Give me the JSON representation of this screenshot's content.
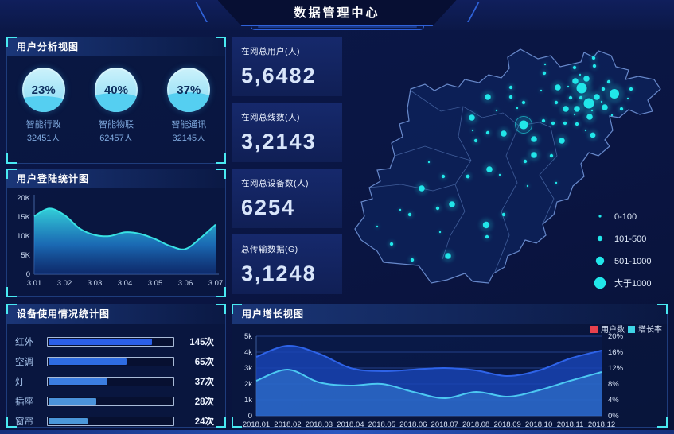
{
  "header": {
    "title": "数据管理中心"
  },
  "panels": {
    "user_analysis": {
      "title": "用户分析视图"
    },
    "login_stats": {
      "title": "用户登陆统计图"
    },
    "device_usage": {
      "title": "设备使用情况统计图"
    },
    "user_growth": {
      "title": "用户增长视图"
    }
  },
  "stat_cards": [
    {
      "label": "在网总用户(人)",
      "value": "5,6482"
    },
    {
      "label": "在网总线数(人)",
      "value": "3,2143"
    },
    {
      "label": "在网总设备数(人)",
      "value": "6254"
    },
    {
      "label": "总传输数据(G)",
      "value": "3,1248"
    }
  ],
  "theme": {
    "accent_cyan": "#49e9f2",
    "dot_cyan": "#21e6e9",
    "area_teal": "#38e0e3",
    "deep_blue": "#2e63e8"
  },
  "chart_data": [
    {
      "id": "user_analysis_gauges",
      "type": "pie",
      "variant": "liquid-fill-gauge",
      "title": "用户分析视图",
      "items": [
        {
          "percent": 23,
          "percent_label": "23%",
          "name": "智能行政",
          "count_label": "32451人",
          "fill_level": 36
        },
        {
          "percent": 40,
          "percent_label": "40%",
          "name": "智能物联",
          "count_label": "62457人",
          "fill_level": 43
        },
        {
          "percent": 37,
          "percent_label": "37%",
          "name": "智能通讯",
          "count_label": "32145人",
          "fill_level": 45
        }
      ]
    },
    {
      "id": "login_area",
      "type": "area",
      "title": "用户登陆统计图",
      "x": [
        3.01,
        3.015,
        3.02,
        3.025,
        3.03,
        3.035,
        3.04,
        3.045,
        3.05,
        3.055,
        3.06,
        3.065,
        3.07
      ],
      "values_k": [
        15.2,
        17.2,
        15.5,
        12.0,
        10.3,
        10.0,
        11.0,
        10.6,
        9.2,
        7.4,
        6.6,
        9.5,
        13.0
      ],
      "ylim_k": [
        0,
        20
      ],
      "yticks": [
        "0",
        "5K",
        "10K",
        "15K",
        "20K"
      ],
      "xticks": [
        "3.01",
        "3.02",
        "3.03",
        "3.04",
        "3.05",
        "3.06",
        "3.07"
      ],
      "line_color": "#38e0e3",
      "grid": false,
      "legend": "none"
    },
    {
      "id": "device_bar",
      "type": "bar",
      "orientation": "horizontal",
      "title": "设备使用情况统计图",
      "categories": [
        "红外",
        "空调",
        "灯",
        "插座",
        "窗帘"
      ],
      "values": [
        145,
        65,
        37,
        28,
        24
      ],
      "value_labels": [
        "145次",
        "65次",
        "37次",
        "28次",
        "24次"
      ],
      "bar_fill_percent": [
        82,
        62,
        47,
        38,
        31
      ],
      "bar_colors": [
        "#2b5fe8",
        "#2e6ce2",
        "#3b7de0",
        "#4b93da",
        "#4b97d9"
      ]
    },
    {
      "id": "growth",
      "type": "area",
      "title": "用户增长视图",
      "categories": [
        "2018.01",
        "2018.02",
        "2018.03",
        "2018.04",
        "2018.05",
        "2018.06",
        "2018.07",
        "2018.08",
        "2018.09",
        "2018.10",
        "2018.11",
        "2018.12"
      ],
      "series": [
        {
          "name": "用户数",
          "axis": "left",
          "legend_color": "#e8414d",
          "line_color": "#2e63e8",
          "fill_color": "rgba(24,68,182,0.82)",
          "values_k": [
            3.7,
            4.4,
            3.9,
            3.0,
            2.8,
            2.9,
            3.0,
            2.85,
            2.5,
            2.85,
            3.6,
            4.1
          ]
        },
        {
          "name": "增长率",
          "axis": "right",
          "legend_color": "#3fd4e6",
          "line_color": "#4cc8f2",
          "fill_color": "rgba(62,140,225,0.45)",
          "values_pct": [
            8.8,
            11.6,
            8.4,
            7.6,
            8.0,
            6.0,
            4.4,
            6.0,
            4.8,
            6.4,
            8.8,
            11.0
          ]
        }
      ],
      "left_ylim_k": [
        0,
        5
      ],
      "left_yticks": [
        "0",
        "1k",
        "2k",
        "3k",
        "4k",
        "5k"
      ],
      "right_ylim_pct": [
        0,
        20
      ],
      "right_yticks": [
        "0%",
        "4%",
        "8%",
        "12%",
        "16%",
        "20%"
      ],
      "grid": true,
      "legend_position": "top-right"
    },
    {
      "id": "map_scatter",
      "type": "scatter",
      "title": "",
      "dot_color": "#21e6e9",
      "legend": [
        {
          "label": "0-100",
          "size": 1.6
        },
        {
          "label": "101-500",
          "size": 3.2
        },
        {
          "label": "501-1000",
          "size": 5.2
        },
        {
          "label": "大于1000",
          "size": 7.2
        }
      ],
      "dots": [
        [
          297,
          67,
          6.5
        ],
        [
          306,
          86,
          6.5
        ],
        [
          338,
          74,
          6
        ],
        [
          224,
          113,
          5.5,
          1
        ],
        [
          289,
          58,
          3.8
        ],
        [
          267,
          66,
          3.8
        ],
        [
          277,
          93,
          3.8
        ],
        [
          291,
          93,
          3.8
        ],
        [
          307,
          103,
          3.8
        ],
        [
          326,
          91,
          3.8
        ],
        [
          316,
          78,
          3.8
        ],
        [
          303,
          55,
          3.8
        ],
        [
          179,
          78,
          3.8
        ],
        [
          159,
          104,
          3.8
        ],
        [
          199,
          124,
          3.8
        ],
        [
          237,
          131,
          3.8
        ],
        [
          272,
          133,
          3.8
        ],
        [
          237,
          151,
          3.8
        ],
        [
          181,
          169,
          3.8
        ],
        [
          96,
          193,
          3.8
        ],
        [
          134,
          213,
          3.8
        ],
        [
          177,
          239,
          4.2
        ],
        [
          129,
          278,
          3.8
        ],
        [
          311,
          126,
          3.4
        ],
        [
          250,
          48,
          2.2
        ],
        [
          265,
          85,
          2.2
        ],
        [
          283,
          79,
          2.2
        ],
        [
          296,
          79,
          2.2
        ],
        [
          313,
          39,
          2.2
        ],
        [
          288,
          41,
          2.2
        ],
        [
          324,
          68,
          2.2
        ],
        [
          331,
          59,
          2.2
        ],
        [
          359,
          68,
          2.2
        ],
        [
          347,
          93,
          2.2
        ],
        [
          249,
          108,
          2.2
        ],
        [
          261,
          111,
          2.2
        ],
        [
          276,
          111,
          2.2
        ],
        [
          291,
          112,
          2.2
        ],
        [
          208,
          66,
          2.2
        ],
        [
          224,
          85,
          2.2
        ],
        [
          179,
          123,
          2.2
        ],
        [
          164,
          133,
          2.2
        ],
        [
          154,
          178,
          2.4
        ],
        [
          226,
          159,
          2.2
        ],
        [
          259,
          152,
          2.2
        ],
        [
          123,
          178,
          2.2
        ],
        [
          116,
          218,
          2.2
        ],
        [
          81,
          226,
          2.2
        ],
        [
          58,
          263,
          2.2
        ],
        [
          178,
          254,
          2.2
        ],
        [
          199,
          226,
          2.2
        ],
        [
          84,
          283,
          2.2
        ],
        [
          208,
          78,
          2.2
        ],
        [
          312,
          29,
          2.2
        ],
        [
          251,
          37,
          1.2
        ],
        [
          280,
          65,
          1.2
        ],
        [
          295,
          50,
          1.2
        ],
        [
          310,
          95,
          1.2
        ],
        [
          322,
          84,
          1.2
        ],
        [
          288,
          100,
          1.2
        ],
        [
          229,
          190,
          1.2
        ],
        [
          265,
          186,
          1.2
        ],
        [
          119,
          248,
          1.2
        ],
        [
          69,
          220,
          1.2
        ],
        [
          40,
          241,
          1.2
        ],
        [
          194,
          176,
          1.2
        ],
        [
          302,
          120,
          1.2
        ],
        [
          335,
          101,
          1.2
        ],
        [
          355,
          80,
          1.2
        ],
        [
          246,
          70,
          1.2
        ],
        [
          216,
          92,
          1.2
        ],
        [
          190,
          95,
          1.2
        ],
        [
          160,
          120,
          1.2
        ],
        [
          105,
          160,
          1.2
        ]
      ]
    }
  ]
}
